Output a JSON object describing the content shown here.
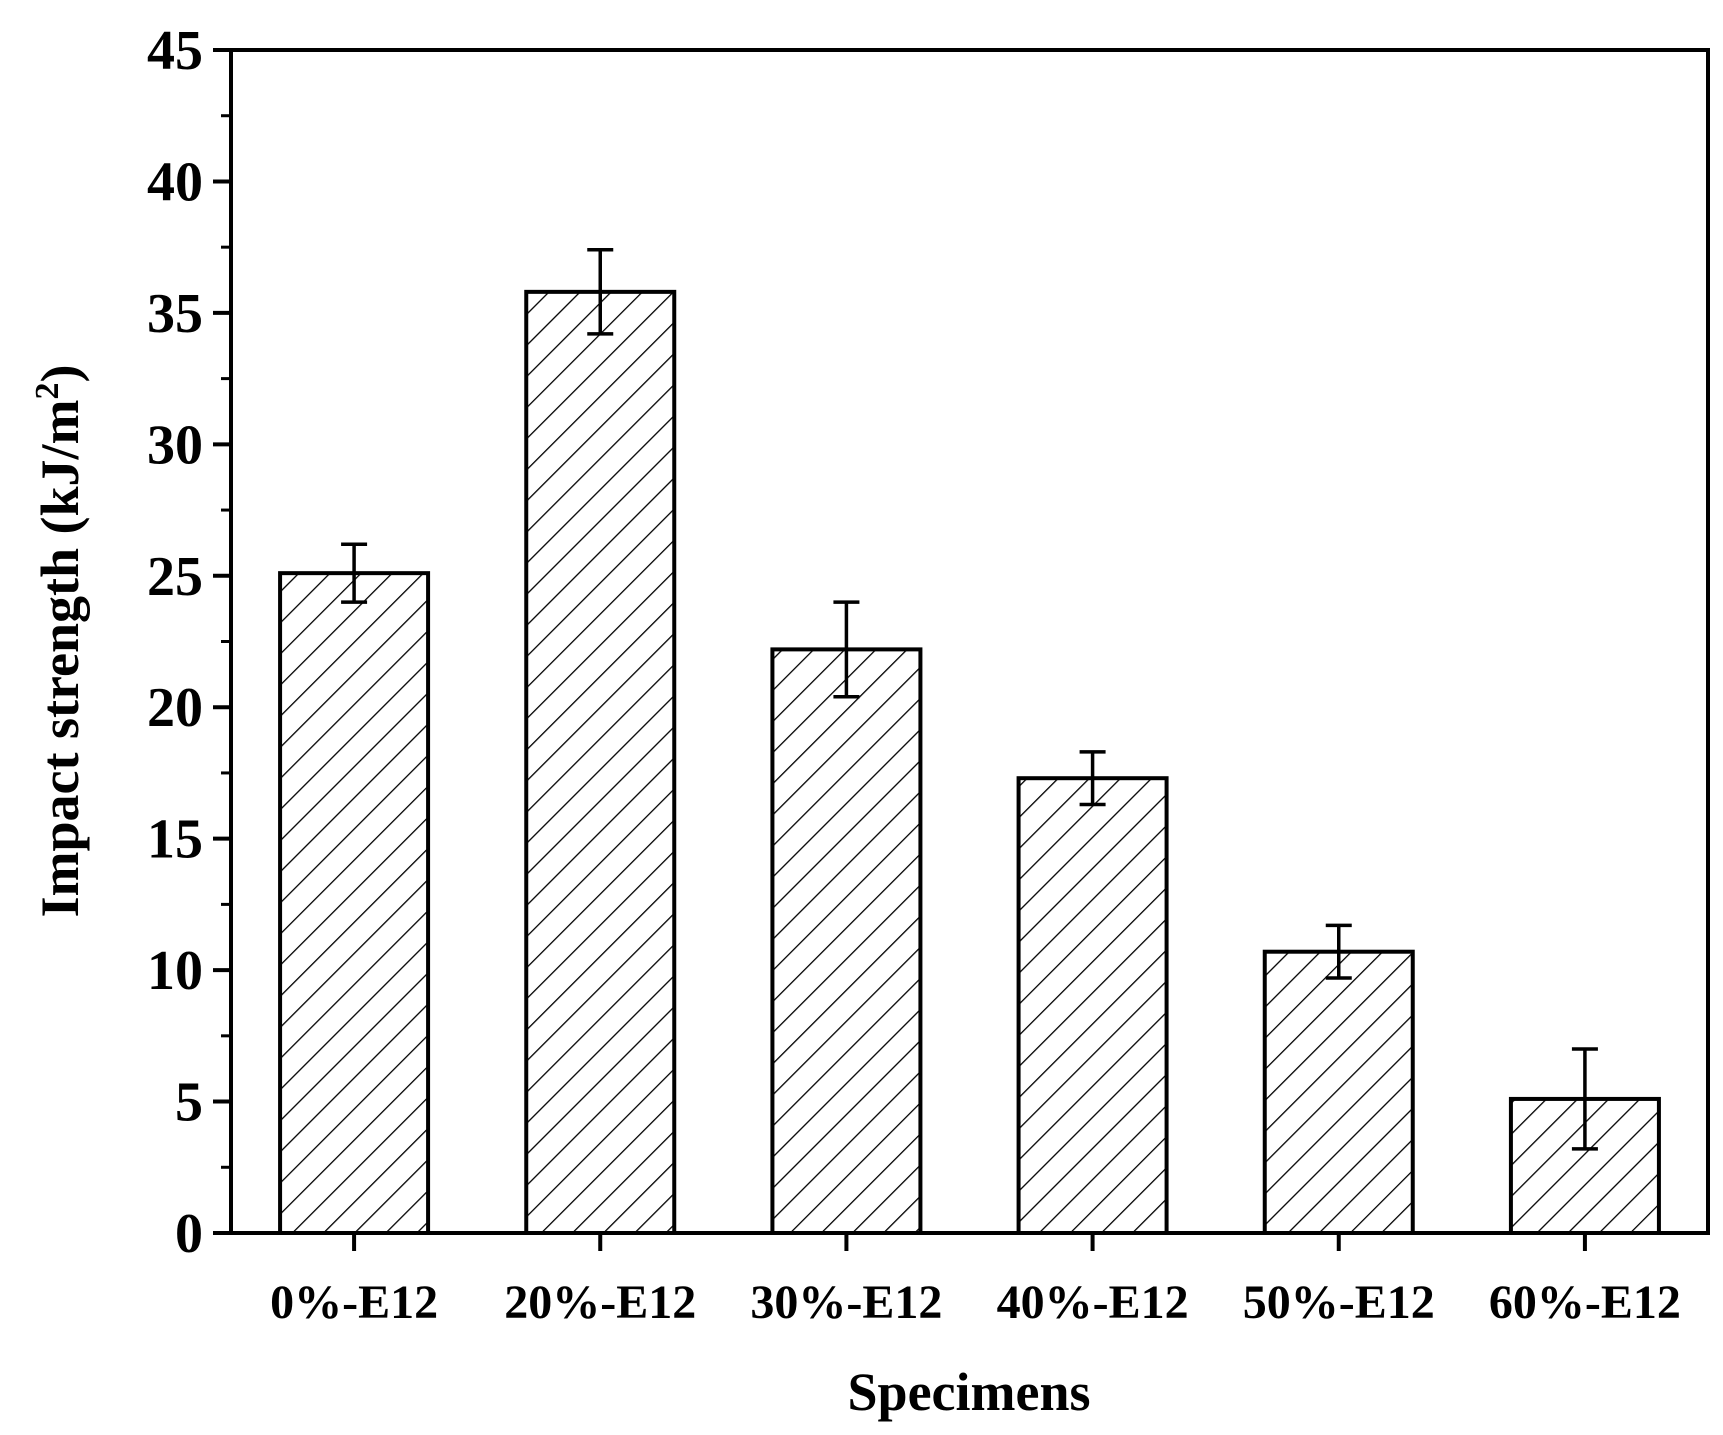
{
  "chart_data": {
    "type": "bar",
    "title": "",
    "xlabel": "Specimens",
    "ylabel": "Impact strength (kJ/m",
    "ylabel_superscript": "2",
    "ylabel_close": ")",
    "categories": [
      "0%-E12",
      "20%-E12",
      "30%-E12",
      "40%-E12",
      "50%-E12",
      "60%-E12"
    ],
    "values": [
      25.1,
      35.8,
      22.2,
      17.3,
      10.7,
      5.1
    ],
    "errors": [
      1.1,
      1.6,
      1.8,
      1.0,
      1.0,
      1.9
    ],
    "ylim": [
      0,
      45
    ],
    "yticks": [
      0,
      5,
      10,
      15,
      20,
      25,
      30,
      35,
      40,
      45
    ],
    "ytick_labels": [
      "0",
      "5",
      "10",
      "15",
      "20",
      "25",
      "30",
      "35",
      "40",
      "45"
    ],
    "bar_fill": "hatched",
    "bar_color": "#000000",
    "grid": false,
    "legend": false
  }
}
